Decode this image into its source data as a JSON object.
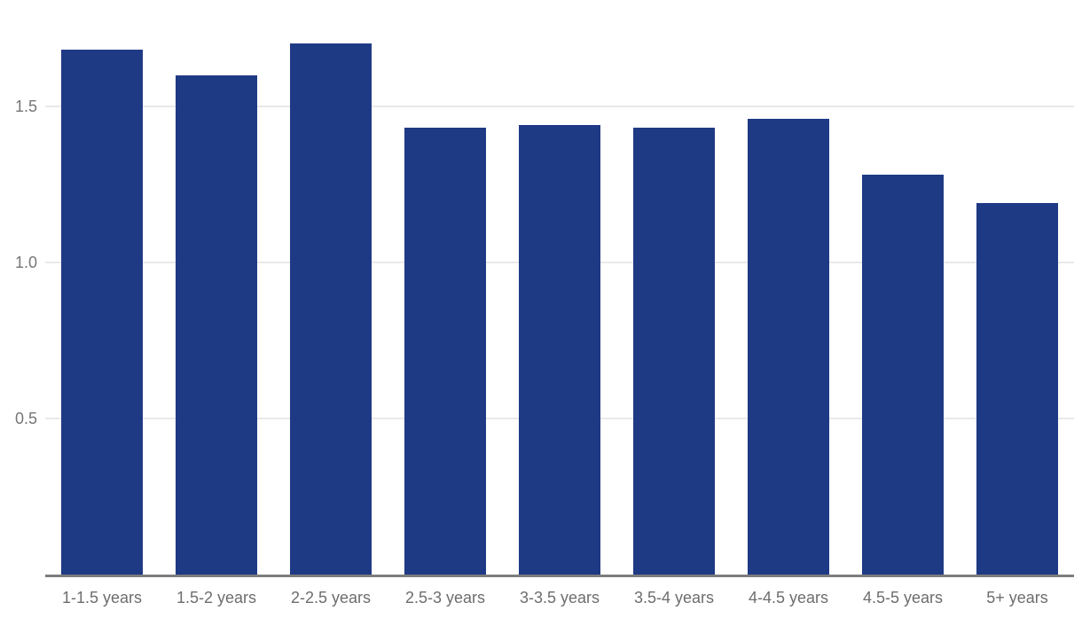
{
  "page": {
    "background": "#ffffff"
  },
  "chart_data": {
    "type": "bar",
    "title": "",
    "xlabel": "",
    "ylabel": "",
    "categories": [
      "1-1.5 years",
      "1.5-2 years",
      "2-2.5 years",
      "2.5-3 years",
      "3-3.5 years",
      "3.5-4 years",
      "4-4.5 years",
      "4.5-5 years",
      "5+ years"
    ],
    "values": [
      1.68,
      1.6,
      1.7,
      1.43,
      1.44,
      1.43,
      1.46,
      1.28,
      1.19
    ],
    "ylim": [
      0,
      1.84
    ],
    "yticks": [
      0.5,
      1.0,
      1.5
    ],
    "ytick_labels": [
      "0.5",
      "1.0",
      "1.5"
    ],
    "grid": true,
    "legend": false,
    "bar_color": "#1f3a85",
    "gridline_color": "#e9e9e9",
    "axis_line_color": "#7d7d7d",
    "ytick_label_color": "#767676",
    "x_label_color": "#6d6d6d"
  }
}
